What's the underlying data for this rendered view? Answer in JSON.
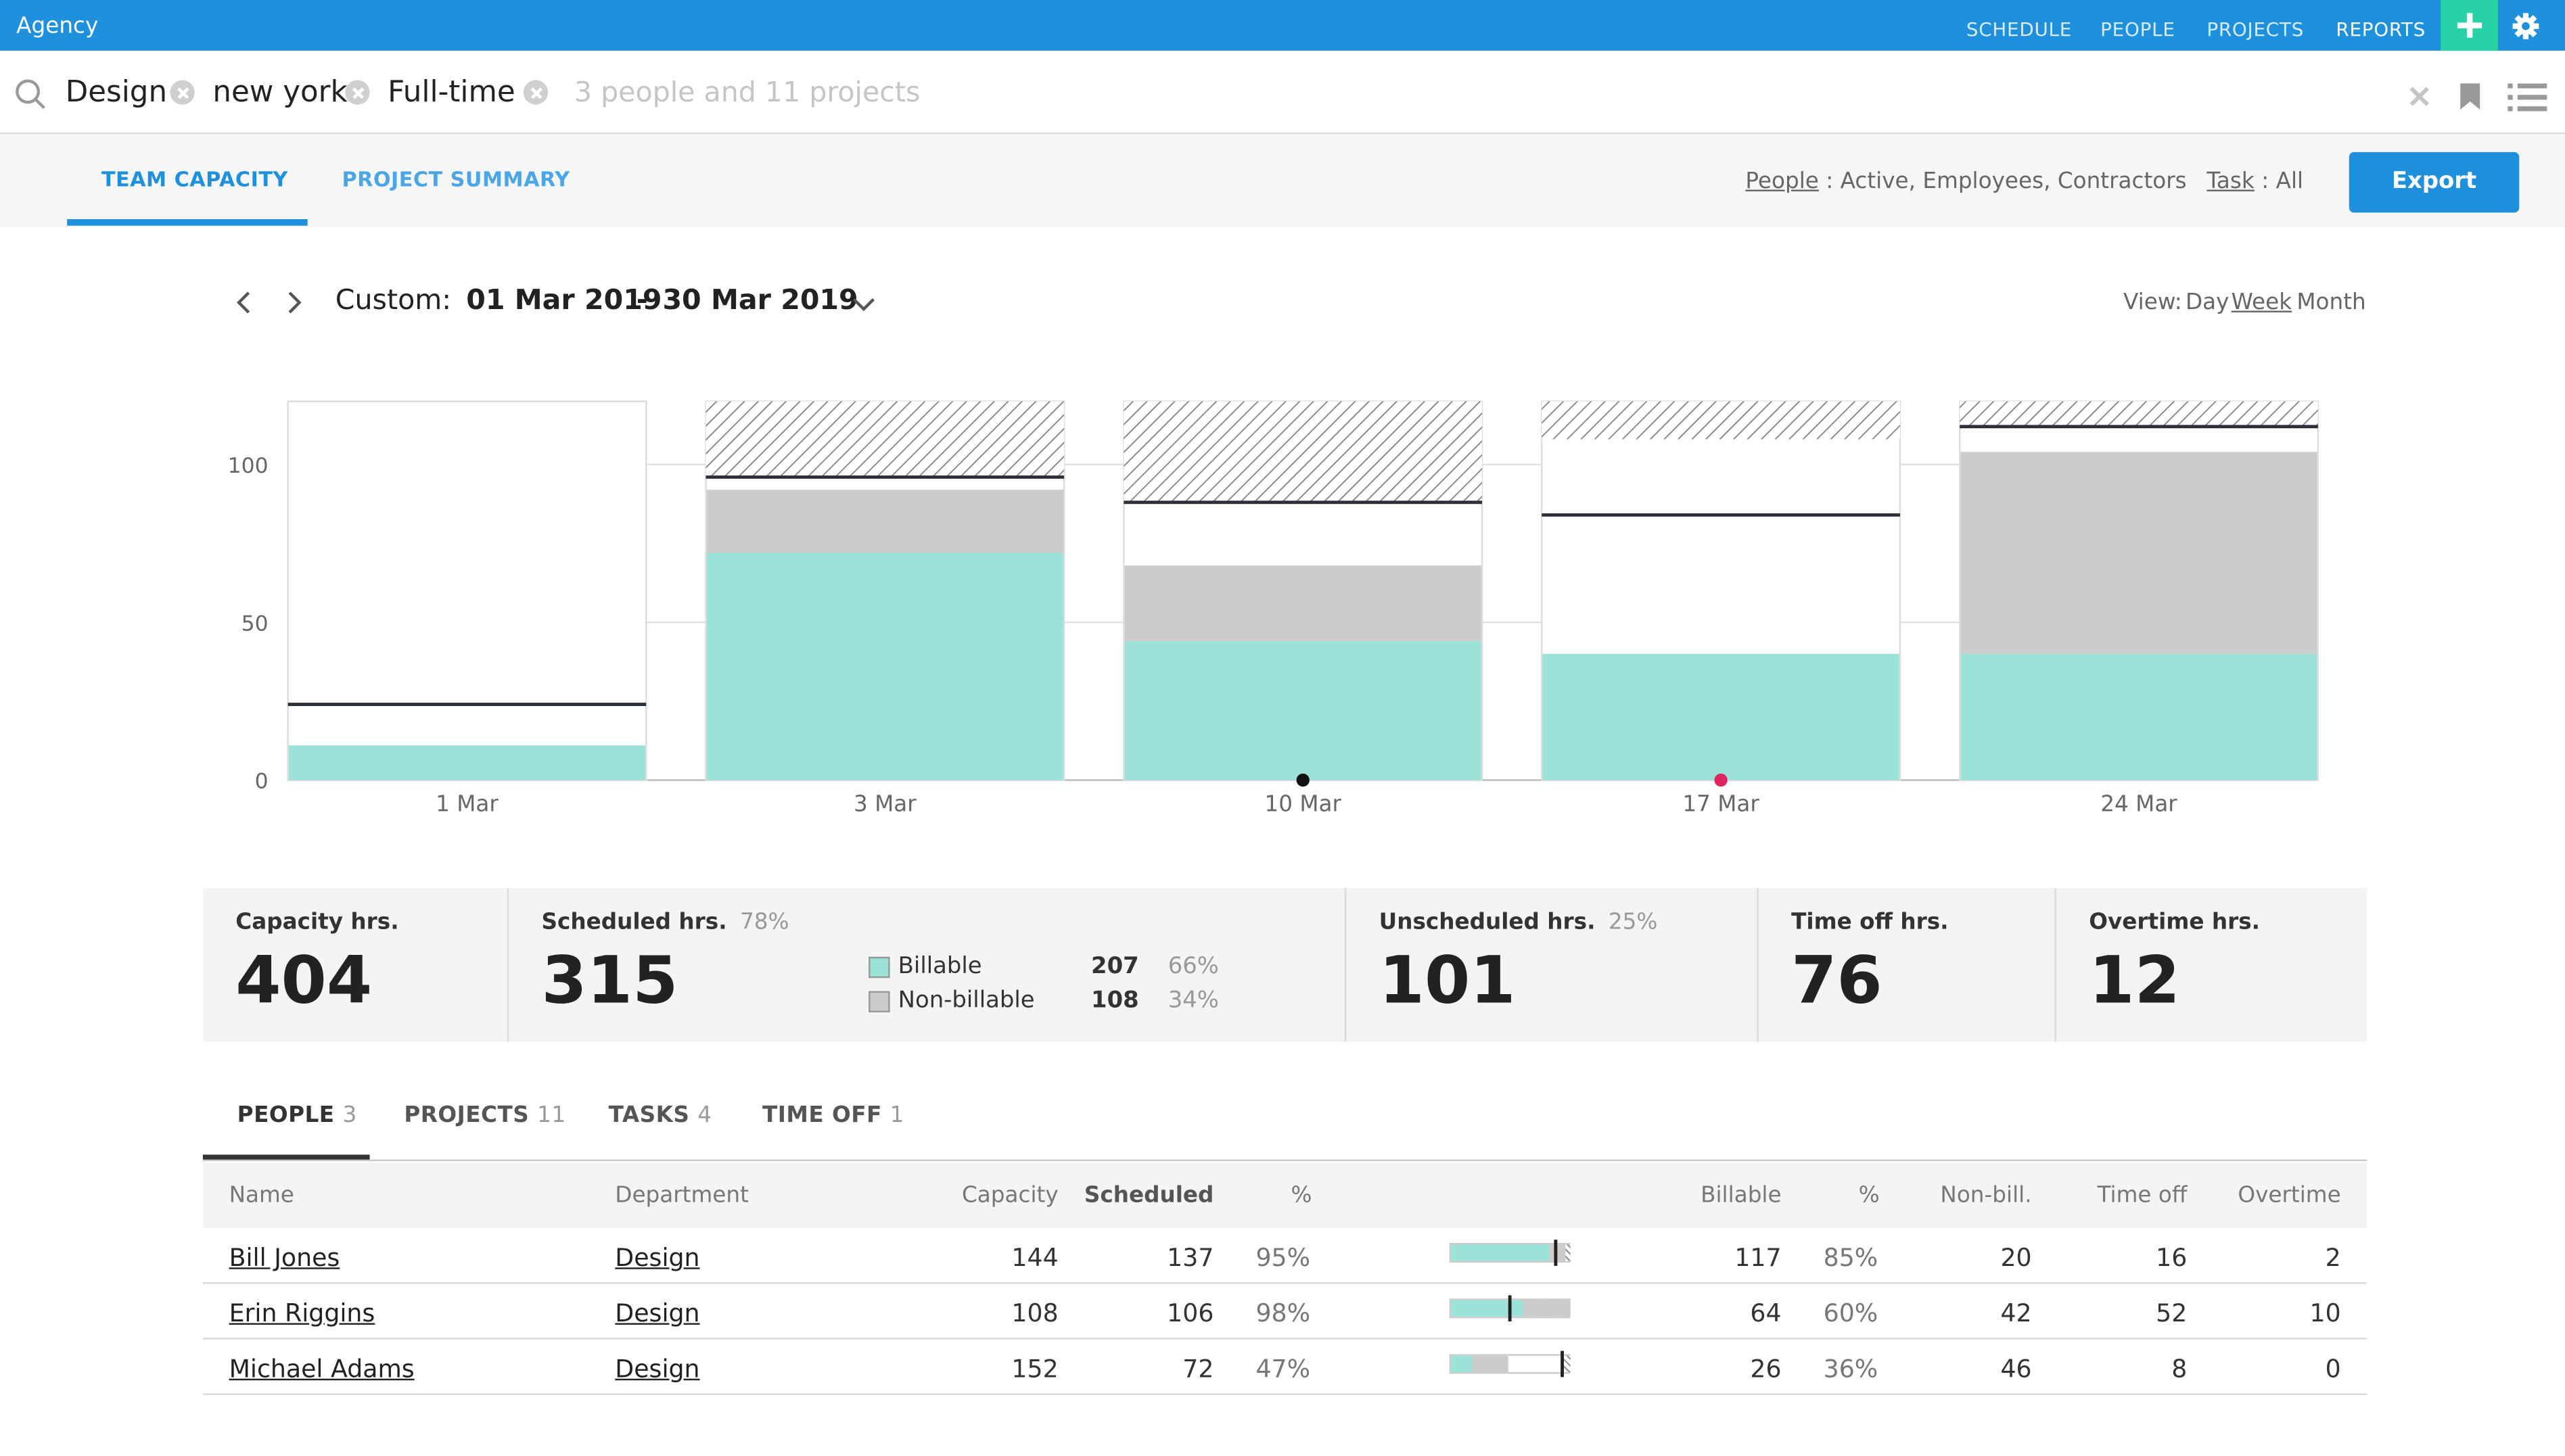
{
  "app": {
    "title": "Agency"
  },
  "nav": {
    "schedule": "SCHEDULE",
    "people": "PEOPLE",
    "projects": "PROJECTS",
    "reports": "REPORTS"
  },
  "filters": {
    "chips": [
      "Design",
      "new york",
      "Full-time"
    ],
    "summary": "3 people and 11 projects"
  },
  "tabs": {
    "team_capacity": "TEAM CAPACITY",
    "project_summary": "PROJECT SUMMARY"
  },
  "people_filter": {
    "label": "People",
    "value": " : Active, Employees, Contractors"
  },
  "task_filter": {
    "label": "Task",
    "value": " : All"
  },
  "export_label": "Export",
  "date_range": {
    "prefix": "Custom:",
    "start": "01 Mar 2019",
    "sep": "-",
    "end": "30 Mar 2019"
  },
  "view": {
    "label": "View:",
    "day": "Day",
    "week": "Week",
    "month": "Month"
  },
  "colors": {
    "accent": "#1e90dc",
    "add": "#28d2a8",
    "billable": "#9be3d9",
    "non_billable": "#cccccc"
  },
  "chart_data": {
    "type": "bar",
    "categories": [
      "1 Mar",
      "3 Mar",
      "10 Mar",
      "17 Mar",
      "24 Mar"
    ],
    "yticks": [
      0,
      50,
      100
    ],
    "ylim": [
      0,
      120
    ],
    "series": [
      {
        "name": "Billable",
        "values": [
          11,
          72,
          44,
          40,
          40
        ]
      },
      {
        "name": "Non-billable",
        "values": [
          0,
          20,
          24,
          0,
          64
        ]
      }
    ],
    "capacity": [
      24,
      96,
      88,
      84,
      112
    ],
    "time_off": [
      0,
      24,
      32,
      12,
      8
    ],
    "markers": [
      {
        "category": "10 Mar",
        "color": "#111111"
      },
      {
        "category": "17 Mar",
        "color": "#e0245e"
      }
    ]
  },
  "summary": {
    "capacity": {
      "label": "Capacity hrs.",
      "value": "404"
    },
    "scheduled": {
      "label": "Scheduled hrs.",
      "pct": "78%",
      "value": "315"
    },
    "billable": {
      "label": "Billable",
      "value": "207",
      "pct": "66%"
    },
    "non_billable": {
      "label": "Non-billable",
      "value": "108",
      "pct": "34%"
    },
    "unscheduled": {
      "label": "Unscheduled hrs.",
      "pct": "25%",
      "value": "101"
    },
    "time_off": {
      "label": "Time off hrs.",
      "value": "76"
    },
    "overtime": {
      "label": "Overtime hrs.",
      "value": "12"
    }
  },
  "bottom_tabs": [
    {
      "label": "PEOPLE",
      "count": "3"
    },
    {
      "label": "PROJECTS",
      "count": "11"
    },
    {
      "label": "TASKS",
      "count": "4"
    },
    {
      "label": "TIME OFF",
      "count": "1"
    }
  ],
  "table": {
    "headers": {
      "name": "Name",
      "department": "Department",
      "capacity": "Capacity",
      "scheduled": "Scheduled",
      "pct": "%",
      "billable": "Billable",
      "bill_pct": "%",
      "non_bill": "Non-bill.",
      "time_off": "Time off",
      "overtime": "Overtime"
    },
    "rows": [
      {
        "name": "Bill Jones",
        "department": "Design",
        "capacity": "144",
        "scheduled": "137",
        "pct": "95%",
        "billable": "117",
        "bill_pct": "85%",
        "non_bill": "20",
        "time_off": "16",
        "overtime": "2",
        "bar": {
          "billable": 0.81,
          "non_billable": 0.14,
          "time_off": 0.11
        }
      },
      {
        "name": "Erin Riggins",
        "department": "Design",
        "capacity": "108",
        "scheduled": "106",
        "pct": "98%",
        "billable": "64",
        "bill_pct": "60%",
        "non_bill": "42",
        "time_off": "52",
        "overtime": "10",
        "bar": {
          "billable": 0.59,
          "non_billable": 0.39,
          "time_off": 0.48
        }
      },
      {
        "name": "Michael Adams",
        "department": "Design",
        "capacity": "152",
        "scheduled": "72",
        "pct": "47%",
        "billable": "26",
        "bill_pct": "36%",
        "non_bill": "46",
        "time_off": "8",
        "overtime": "0",
        "bar": {
          "billable": 0.17,
          "non_billable": 0.3,
          "time_off": 0.05
        }
      }
    ]
  }
}
